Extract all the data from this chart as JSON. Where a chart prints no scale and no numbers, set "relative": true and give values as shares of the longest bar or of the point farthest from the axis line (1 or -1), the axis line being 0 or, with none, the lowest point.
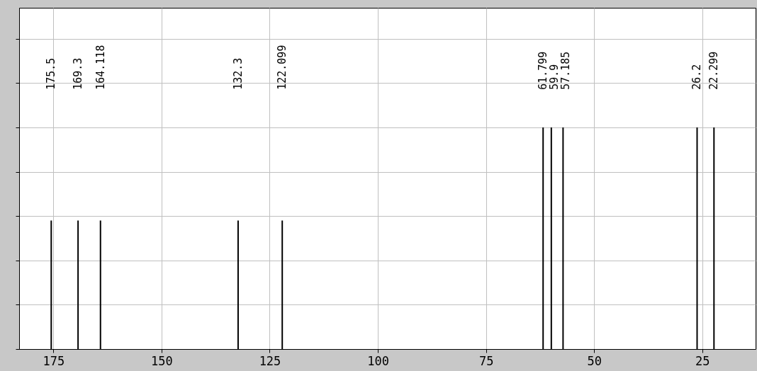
{
  "chart_data": {
    "type": "bar",
    "x": [
      175.5,
      169.3,
      164.118,
      132.3,
      122.099,
      61.799,
      59.9,
      57.185,
      26.2,
      22.299
    ],
    "values": [
      0.58,
      0.58,
      0.58,
      0.58,
      0.58,
      1,
      1,
      1,
      1,
      1
    ],
    "relative": true,
    "color": "#000000",
    "xlim": [
      182.1,
      13.5
    ],
    "xticks": [
      175,
      150,
      125,
      100,
      75,
      50,
      25
    ],
    "grid": true,
    "annotations": [
      "175.5",
      "169.3",
      "164.118",
      "132.3",
      "122.099",
      "61.799",
      "59.9",
      "57.185",
      "26.2",
      "22.299"
    ]
  }
}
